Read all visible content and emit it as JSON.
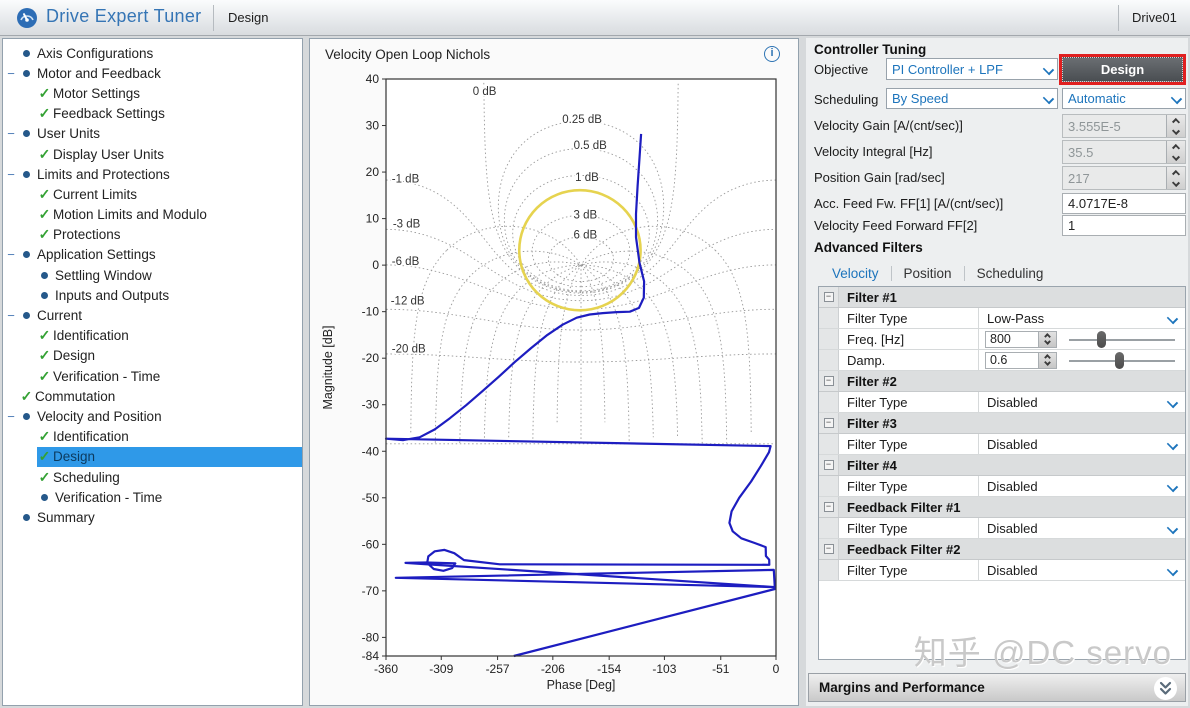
{
  "header": {
    "app_title": "Drive Expert Tuner",
    "tab": "Design",
    "device": "Drive01"
  },
  "tree": {
    "items": [
      {
        "label": "Axis Configurations",
        "level": 0,
        "marker": "bullet",
        "expander": false,
        "selected": false
      },
      {
        "label": "Motor and Feedback",
        "level": 0,
        "marker": "bullet",
        "expander": true,
        "selected": false
      },
      {
        "label": "Motor Settings",
        "level": 1,
        "marker": "check",
        "expander": false,
        "selected": false
      },
      {
        "label": "Feedback Settings",
        "level": 1,
        "marker": "check",
        "expander": false,
        "selected": false
      },
      {
        "label": "User Units",
        "level": 0,
        "marker": "bullet",
        "expander": true,
        "selected": false
      },
      {
        "label": "Display User Units",
        "level": 1,
        "marker": "check",
        "expander": false,
        "selected": false
      },
      {
        "label": "Limits and Protections",
        "level": 0,
        "marker": "bullet",
        "expander": true,
        "selected": false
      },
      {
        "label": "Current Limits",
        "level": 1,
        "marker": "check",
        "expander": false,
        "selected": false
      },
      {
        "label": "Motion Limits and Modulo",
        "level": 1,
        "marker": "check",
        "expander": false,
        "selected": false
      },
      {
        "label": "Protections",
        "level": 1,
        "marker": "check",
        "expander": false,
        "selected": false
      },
      {
        "label": "Application Settings",
        "level": 0,
        "marker": "bullet",
        "expander": true,
        "selected": false
      },
      {
        "label": "Settling Window",
        "level": 1,
        "marker": "bullet",
        "expander": false,
        "selected": false
      },
      {
        "label": "Inputs and Outputs",
        "level": 1,
        "marker": "bullet",
        "expander": false,
        "selected": false
      },
      {
        "label": "Current",
        "level": 0,
        "marker": "bullet",
        "expander": true,
        "selected": false
      },
      {
        "label": "Identification",
        "level": 1,
        "marker": "check",
        "expander": false,
        "selected": false
      },
      {
        "label": "Design",
        "level": 1,
        "marker": "check",
        "expander": false,
        "selected": false
      },
      {
        "label": "Verification - Time",
        "level": 1,
        "marker": "check",
        "expander": false,
        "selected": false
      },
      {
        "label": "Commutation",
        "level": 0,
        "marker": "check",
        "expander": false,
        "selected": false
      },
      {
        "label": "Velocity and Position",
        "level": 0,
        "marker": "bullet",
        "expander": true,
        "selected": false
      },
      {
        "label": "Identification",
        "level": 1,
        "marker": "check",
        "expander": false,
        "selected": false
      },
      {
        "label": "Design",
        "level": 1,
        "marker": "check",
        "expander": false,
        "selected": true
      },
      {
        "label": "Scheduling",
        "level": 1,
        "marker": "check",
        "expander": false,
        "selected": false
      },
      {
        "label": "Verification - Time",
        "level": 1,
        "marker": "bullet",
        "expander": false,
        "selected": false
      },
      {
        "label": "Summary",
        "level": 0,
        "marker": "bullet",
        "expander": false,
        "selected": false
      }
    ]
  },
  "controller": {
    "section_title": "Controller Tuning",
    "objective_label": "Objective",
    "objective_value": "PI Controller + LPF",
    "design_button": "Design",
    "scheduling_label": "Scheduling",
    "scheduling_value": "By Speed",
    "scheduling_mode": "Automatic",
    "params": [
      {
        "label": "Velocity Gain [A/(cnt/sec)]",
        "value": "3.555E-5",
        "disabled": true,
        "spinner": true
      },
      {
        "label": "Velocity Integral [Hz]",
        "value": "35.5",
        "disabled": true,
        "spinner": true
      },
      {
        "label": "Position Gain [rad/sec]",
        "value": "217",
        "disabled": true,
        "spinner": true
      },
      {
        "label": "Acc. Feed Fw. FF[1] [A/(cnt/sec)]",
        "value": "4.0717E-8",
        "disabled": false,
        "spinner": false
      },
      {
        "label": "Velocity Feed Forward FF[2]",
        "value": "1",
        "disabled": false,
        "spinner": false
      }
    ]
  },
  "advanced_filters": {
    "section_title": "Advanced Filters",
    "tabs": [
      "Velocity",
      "Position",
      "Scheduling"
    ],
    "active_tab": "Velocity",
    "groups": [
      {
        "name": "Filter #1",
        "rows": [
          {
            "label": "Filter Type",
            "type": "dropdown",
            "value": "Low-Pass"
          },
          {
            "label": "Freq. [Hz]",
            "type": "spinner-slider",
            "value": "800",
            "slider_pos": 0.3
          },
          {
            "label": "Damp.",
            "type": "spinner-slider",
            "value": "0.6",
            "slider_pos": 0.47
          }
        ]
      },
      {
        "name": "Filter #2",
        "rows": [
          {
            "label": "Filter Type",
            "type": "dropdown",
            "value": "Disabled"
          }
        ]
      },
      {
        "name": "Filter #3",
        "rows": [
          {
            "label": "Filter Type",
            "type": "dropdown",
            "value": "Disabled"
          }
        ]
      },
      {
        "name": "Filter #4",
        "rows": [
          {
            "label": "Filter Type",
            "type": "dropdown",
            "value": "Disabled"
          }
        ]
      },
      {
        "name": "Feedback Filter #1",
        "rows": [
          {
            "label": "Filter Type",
            "type": "dropdown",
            "value": "Disabled"
          }
        ]
      },
      {
        "name": "Feedback Filter #2",
        "rows": [
          {
            "label": "Filter Type",
            "type": "dropdown",
            "value": "Disabled"
          }
        ]
      }
    ]
  },
  "margins_bar": {
    "label": "Margins and Performance"
  },
  "watermark": "知乎 @DC servo",
  "chart_data": {
    "type": "line",
    "title": "Velocity Open Loop Nichols",
    "xlabel": "Phase [Deg]",
    "ylabel": "Magnitude [dB]",
    "xlim": [
      -360,
      0
    ],
    "ylim": [
      -84,
      40
    ],
    "xticks": [
      -360,
      -309,
      -257,
      -206,
      -154,
      -103,
      -51,
      0
    ],
    "yticks": [
      40,
      30,
      20,
      10,
      0,
      -10,
      -20,
      -30,
      -40,
      -50,
      -60,
      -70,
      -80,
      -84
    ],
    "grid": {
      "style": "nichols",
      "mag_contours_db": [
        6,
        3,
        1,
        0.5,
        0.25,
        0,
        -1,
        -3,
        -6,
        -12,
        -20
      ],
      "phase_spokes_deg": [
        -22.5,
        -45,
        -67.5,
        -90,
        -112.5,
        -135,
        -157.5
      ],
      "center_spoke_deg": -180,
      "clip_mag": [
        -38.4,
        40
      ],
      "color": "#999999"
    },
    "grid_labels": [
      {
        "text": "0 dB",
        "phase": -269,
        "mag": 37.4
      },
      {
        "text": "0.25 dB",
        "phase": -179,
        "mag": 31.4
      },
      {
        "text": "0.5 dB",
        "phase": -171.5,
        "mag": 25.8
      },
      {
        "text": "1 dB",
        "phase": -174.5,
        "mag": 18.9
      },
      {
        "text": "3 dB",
        "phase": -176,
        "mag": 10.9
      },
      {
        "text": "6 dB",
        "phase": -176,
        "mag": 6.6
      },
      {
        "text": "-1 dB",
        "phase": -342,
        "mag": 18.6
      },
      {
        "text": "-3 dB",
        "phase": -341,
        "mag": 9.0
      },
      {
        "text": "-6 dB",
        "phase": -342,
        "mag": 0.9
      },
      {
        "text": "-12 dB",
        "phase": -340,
        "mag": -7.6
      },
      {
        "text": "-20 dB",
        "phase": -339,
        "mag": -17.9
      }
    ],
    "robustness_circle": {
      "color": "#e6d34f",
      "center_phase": -181,
      "center_mag": 3.2,
      "rx_deg": 56,
      "ry_db": 12.9
    },
    "series": [
      {
        "name": "Velocity Open Loop",
        "color": "#1d1dc0",
        "points": [
          [
            -124.5,
            28.2
          ],
          [
            -126,
            23
          ],
          [
            -127.8,
            17
          ],
          [
            -129.2,
            11
          ],
          [
            -129.2,
            6
          ],
          [
            -126,
            0.5
          ],
          [
            -121.8,
            -3.5
          ],
          [
            -122,
            -7
          ],
          [
            -126.5,
            -9.2
          ],
          [
            -135,
            -10.0
          ],
          [
            -147,
            -10.1
          ],
          [
            -160,
            -10.3
          ],
          [
            -172,
            -10.6
          ],
          [
            -184,
            -11.3
          ],
          [
            -197,
            -12.8
          ],
          [
            -211,
            -15.0
          ],
          [
            -226,
            -17.8
          ],
          [
            -241,
            -20.8
          ],
          [
            -256,
            -24.0
          ],
          [
            -271,
            -27.1
          ],
          [
            -286,
            -30.1
          ],
          [
            -301,
            -32.9
          ],
          [
            -315,
            -35.3
          ],
          [
            -329,
            -37.0
          ],
          [
            -344,
            -37.6
          ],
          [
            -360,
            -37.3
          ],
          [
            -5,
            -38.9
          ],
          [
            -6.5,
            -40.2
          ],
          [
            -14,
            -43.2
          ],
          [
            -23,
            -46.5
          ],
          [
            -34,
            -50.0
          ],
          [
            -41,
            -52.9
          ],
          [
            -43,
            -55.4
          ],
          [
            -40,
            -57.2
          ],
          [
            -32,
            -58.7
          ],
          [
            -20,
            -59.7
          ],
          [
            -9.5,
            -60.6
          ],
          [
            -9.3,
            -62.5
          ],
          [
            -6.3,
            -63.3
          ],
          [
            -6.2,
            -64.4
          ],
          [
            -255,
            -64.3
          ],
          [
            -288,
            -63.4
          ],
          [
            -297,
            -61.9
          ],
          [
            -306,
            -61.2
          ],
          [
            -315,
            -61.5
          ],
          [
            -321,
            -62.6
          ],
          [
            -322,
            -64.0
          ],
          [
            -316,
            -65.3
          ],
          [
            -307,
            -65.7
          ],
          [
            -299,
            -65.1
          ],
          [
            -296,
            -64.1
          ],
          [
            -323,
            -63.9
          ],
          [
            -342,
            -64.0
          ],
          [
            -1.5,
            -69.2
          ],
          [
            -351,
            -67.2
          ],
          [
            -2,
            -65.5
          ],
          [
            -1,
            -69.6
          ],
          [
            -242,
            -84
          ]
        ]
      }
    ]
  }
}
